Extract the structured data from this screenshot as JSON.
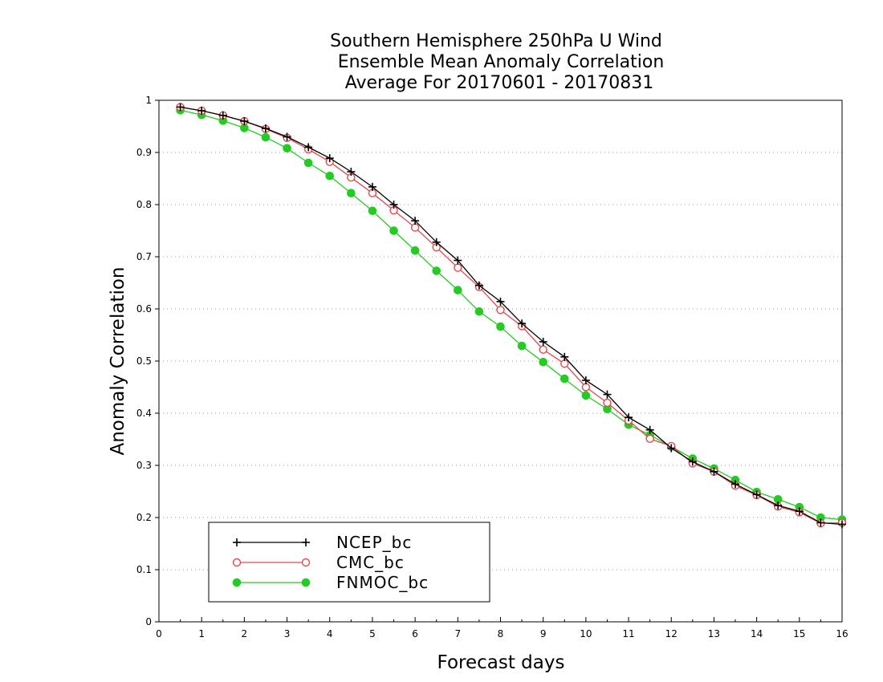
{
  "chart_data": {
    "type": "line",
    "title_lines": [
      "Southern Hemisphere 250hPa U Wind",
      "Ensemble Mean Anomaly Correlation",
      "Average For 20170601 - 20170831"
    ],
    "xlabel": "Forecast days",
    "ylabel": "Anomaly Correlation",
    "xlim": [
      0,
      16
    ],
    "ylim": [
      0,
      1
    ],
    "xticks": [
      "0",
      "1",
      "2",
      "3",
      "4",
      "5",
      "6",
      "7",
      "8",
      "9",
      "10",
      "11",
      "12",
      "13",
      "14",
      "15",
      "16"
    ],
    "yticks": [
      "0",
      "0.1",
      "0.2",
      "0.3",
      "0.4",
      "0.5",
      "0.6",
      "0.7",
      "0.8",
      "0.9",
      "1"
    ],
    "grid": true,
    "legend_position": "bottom-left",
    "x": [
      0.5,
      1,
      1.5,
      2,
      2.5,
      3,
      3.5,
      4,
      4.5,
      5,
      5.5,
      6,
      6.5,
      7,
      7.5,
      8,
      8.5,
      9,
      9.5,
      10,
      10.5,
      11,
      11.5,
      12,
      12.5,
      13,
      13.5,
      14,
      14.5,
      15,
      15.5,
      16
    ],
    "series": [
      {
        "name": "NCEP_bc",
        "color": "#000000",
        "marker": "plus",
        "values": [
          0.987,
          0.98,
          0.971,
          0.96,
          0.946,
          0.93,
          0.91,
          0.889,
          0.863,
          0.834,
          0.8,
          0.769,
          0.728,
          0.693,
          0.645,
          0.614,
          0.572,
          0.537,
          0.508,
          0.463,
          0.436,
          0.392,
          0.368,
          0.333,
          0.307,
          0.288,
          0.264,
          0.244,
          0.223,
          0.212,
          0.19,
          0.187
        ]
      },
      {
        "name": "CMC_bc",
        "color": "#e8474c",
        "marker": "open-circle",
        "values": [
          0.987,
          0.98,
          0.971,
          0.96,
          0.945,
          0.928,
          0.906,
          0.882,
          0.852,
          0.822,
          0.789,
          0.756,
          0.718,
          0.679,
          0.642,
          0.598,
          0.567,
          0.522,
          0.495,
          0.45,
          0.42,
          0.386,
          0.351,
          0.337,
          0.304,
          0.288,
          0.261,
          0.243,
          0.221,
          0.21,
          0.189,
          0.19
        ]
      },
      {
        "name": "FNMOC_bc",
        "color": "#22cc22",
        "marker": "filled-circle",
        "values": [
          0.981,
          0.972,
          0.961,
          0.947,
          0.929,
          0.908,
          0.88,
          0.855,
          0.822,
          0.788,
          0.75,
          0.712,
          0.673,
          0.636,
          0.595,
          0.566,
          0.529,
          0.498,
          0.466,
          0.434,
          0.408,
          0.378,
          0.358,
          0.336,
          0.313,
          0.294,
          0.272,
          0.249,
          0.235,
          0.22,
          0.2,
          0.196
        ]
      }
    ]
  }
}
